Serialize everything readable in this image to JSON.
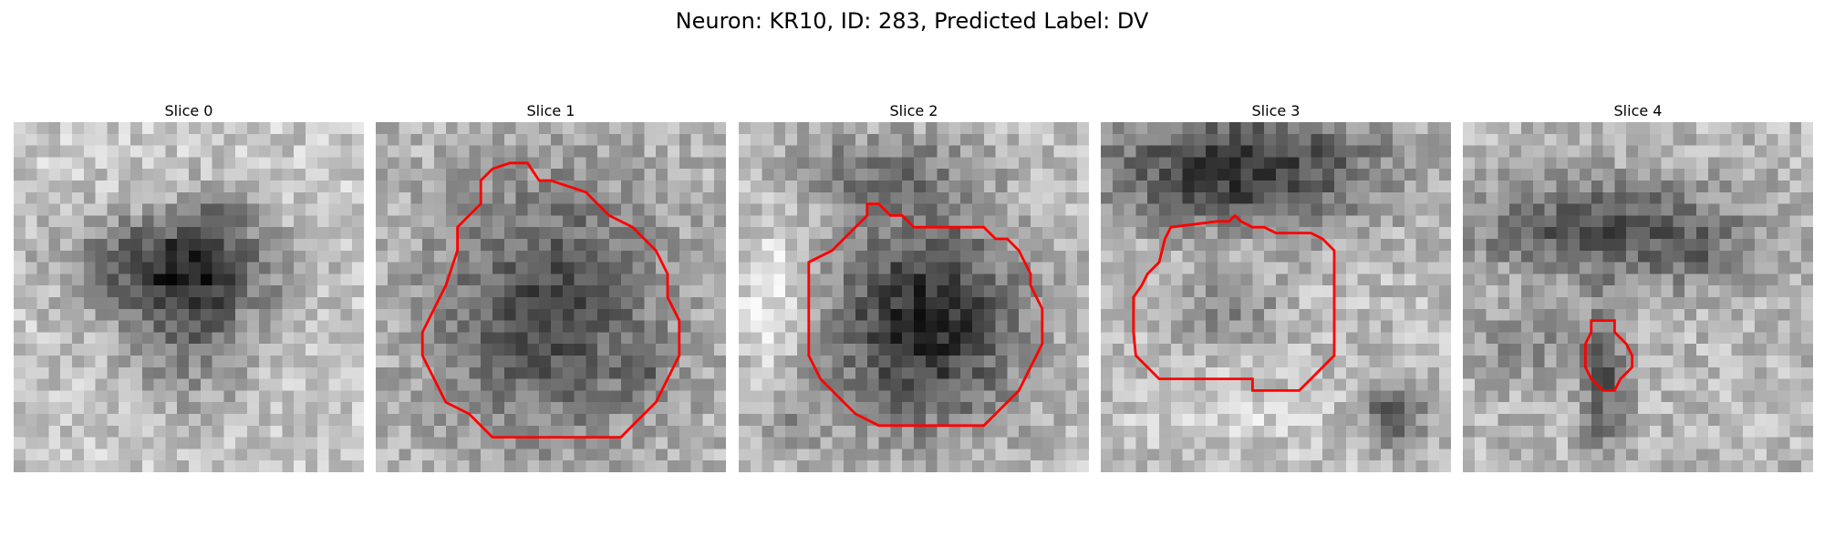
{
  "figure": {
    "title": "Neuron: KR10, ID: 283, Predicted Label: DV"
  },
  "panels": [
    {
      "title": "Slice 0",
      "has_contour": false
    },
    {
      "title": "Slice 1",
      "has_contour": true
    },
    {
      "title": "Slice 2",
      "has_contour": true
    },
    {
      "title": "Slice 3",
      "has_contour": true
    },
    {
      "title": "Slice 4",
      "has_contour": true
    }
  ],
  "colors": {
    "contour": "#ff0000",
    "background": "#ffffff"
  },
  "image": {
    "colormap": "grayscale",
    "grid_size": 30
  }
}
